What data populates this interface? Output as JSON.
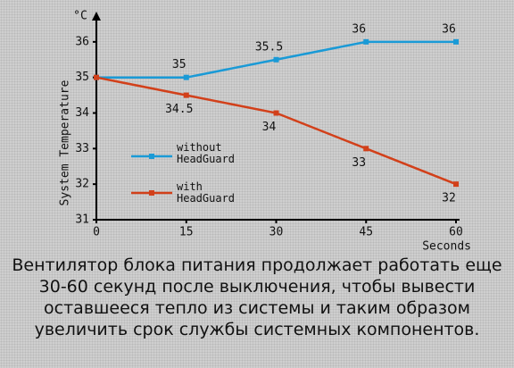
{
  "chart_data": {
    "type": "line",
    "x": [
      0,
      15,
      30,
      45,
      60
    ],
    "series": [
      {
        "name": "without HeadGuard",
        "color": "#1a9ad6",
        "values": [
          35,
          35,
          35.5,
          36,
          36
        ]
      },
      {
        "name": "with HeadGuard",
        "color": "#d2401a",
        "values": [
          35,
          34.5,
          34,
          33,
          32
        ]
      }
    ],
    "xlim": [
      0,
      60
    ],
    "xticks": [
      0,
      15,
      30,
      45,
      60
    ],
    "ylim": [
      31,
      36.8
    ],
    "yticks": [
      31,
      32,
      33,
      34,
      35,
      36
    ],
    "x_label": "Seconds",
    "y_label": "System Temperature",
    "y_unit": "°C",
    "caption": "Вентилятор блока питания продолжает работать еще 30-60 секунд после выключения, чтобы вывести оставшееся тепло из системы и таким образом увеличить срок службы системных компонентов."
  }
}
